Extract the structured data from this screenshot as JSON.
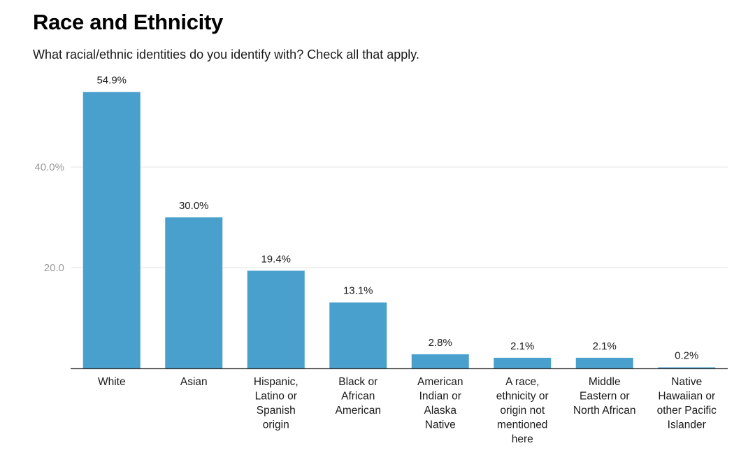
{
  "header": {
    "title": "Race and Ethnicity",
    "subtitle": "What racial/ethnic identities do you identify with? Check all that apply."
  },
  "chart_data": {
    "type": "bar",
    "title": "Race and Ethnicity",
    "subtitle": "What racial/ethnic identities do you identify with? Check all that apply.",
    "xlabel": "",
    "ylabel": "",
    "categories": [
      "White",
      "Asian",
      "Hispanic, Latino or Spanish origin",
      "Black or African American",
      "American Indian or Alaska Native",
      "A race, ethnicity or origin not mentioned here",
      "Middle Eastern or North African",
      "Native Hawaiian or other Pacific Islander"
    ],
    "category_label_lines": [
      [
        "White"
      ],
      [
        "Asian"
      ],
      [
        "Hispanic,",
        "Latino or",
        "Spanish",
        "origin"
      ],
      [
        "Black or",
        "African",
        "American"
      ],
      [
        "American",
        "Indian or",
        "Alaska",
        "Native"
      ],
      [
        "A race,",
        "ethnicity or",
        "origin not",
        "mentioned",
        "here"
      ],
      [
        "Middle",
        "Eastern or",
        "North African"
      ],
      [
        "Native",
        "Hawaiian or",
        "other Pacific",
        "Islander"
      ]
    ],
    "values": [
      54.9,
      30.0,
      19.4,
      13.1,
      2.8,
      2.1,
      2.1,
      0.2
    ],
    "data_labels": [
      "54.9%",
      "30.0%",
      "19.4%",
      "13.1%",
      "2.8%",
      "2.1%",
      "2.1%",
      "0.2%"
    ],
    "yticks": [
      20,
      40
    ],
    "ytick_labels": [
      "20.0",
      "40.0%"
    ],
    "ylim": [
      0,
      55
    ],
    "grid": true,
    "legend": "none",
    "bar_color": "#4aa0cc",
    "grid_color": "#e6e6e6",
    "axis_color": "#333333"
  }
}
